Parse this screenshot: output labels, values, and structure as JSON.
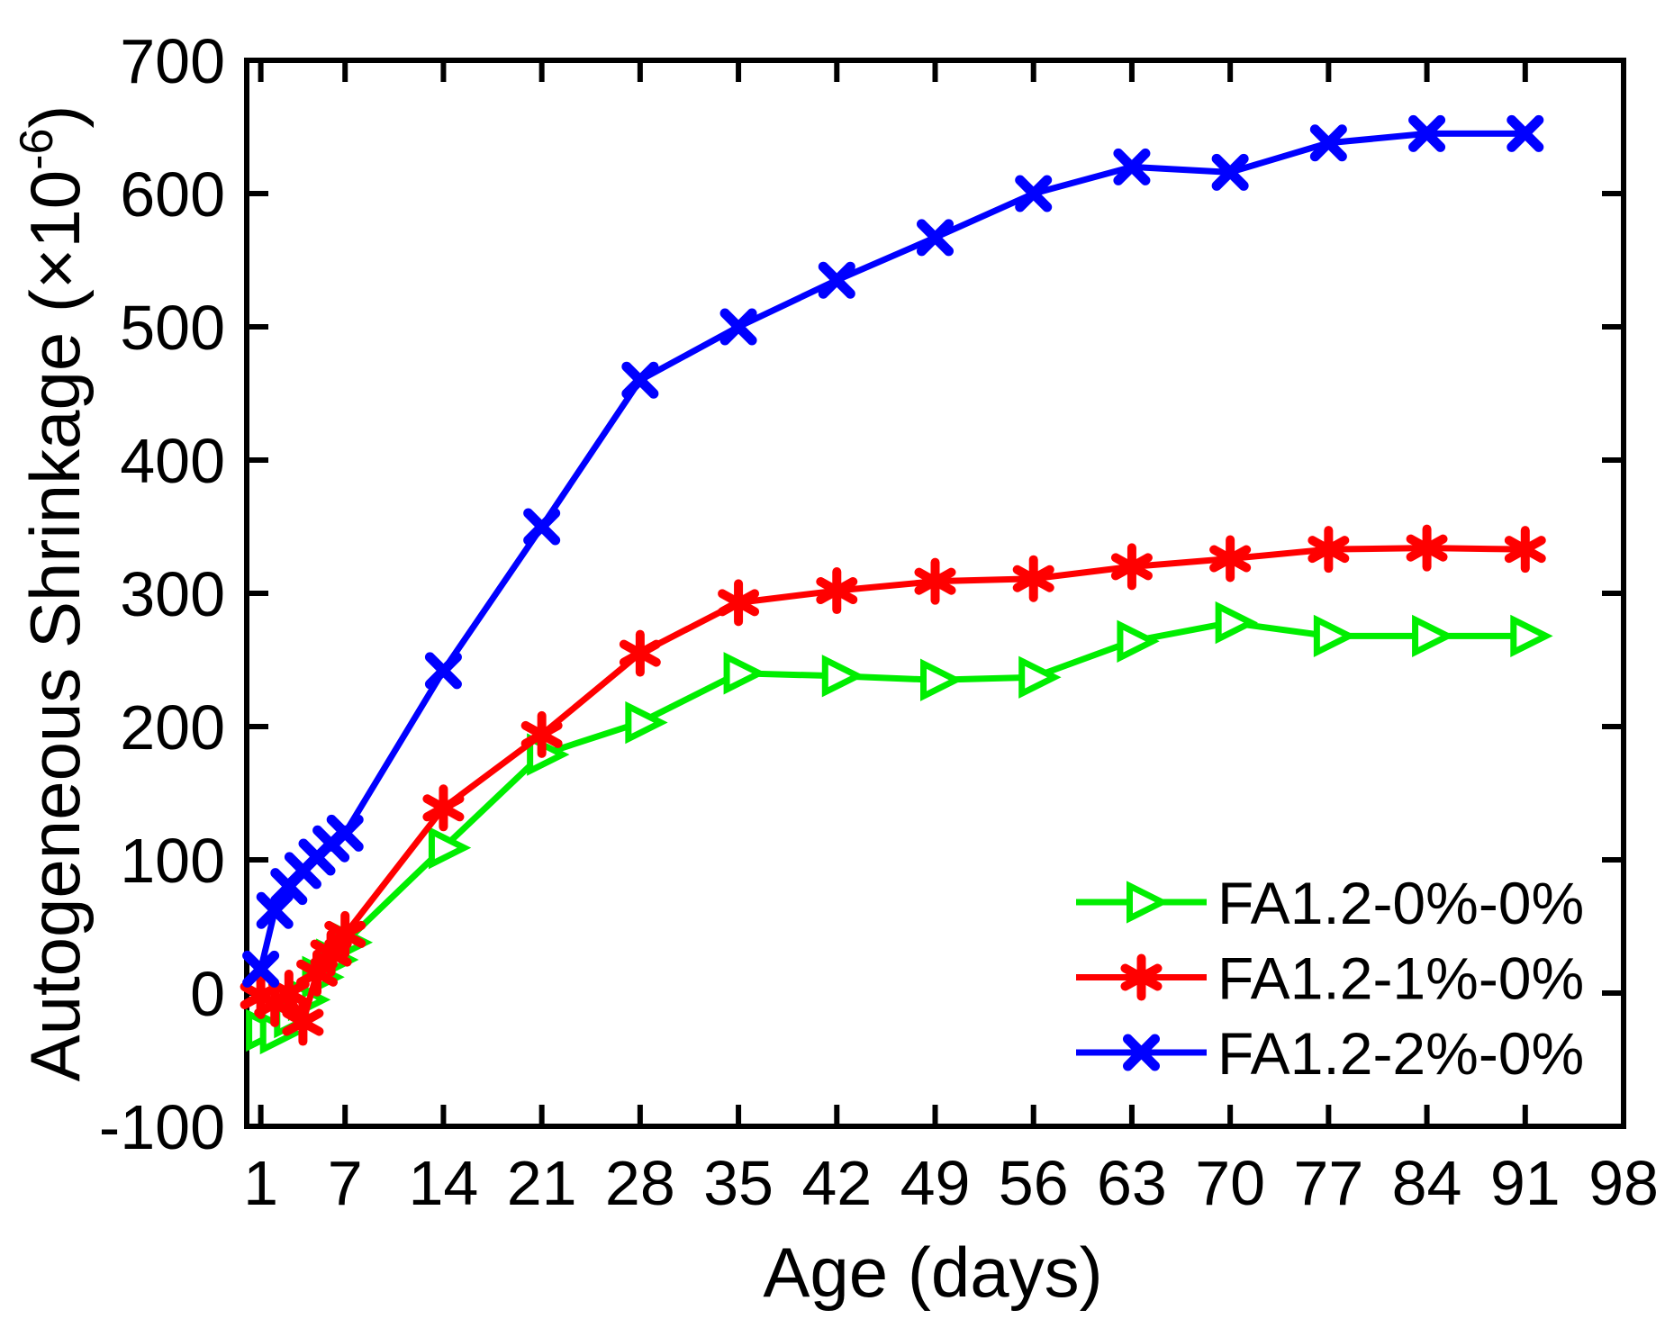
{
  "chart_data": {
    "type": "line",
    "title": "",
    "xlabel": "Age (days)",
    "ylabel": "Autogeneous Shrinkage (×10⁻⁶)",
    "ylabel_parts": {
      "main": "Autogeneous Shrinkage (×10",
      "superscript": "-6",
      "close": ")"
    },
    "axis_color": "#000000",
    "background": "#ffffff",
    "xlim": [
      0,
      98
    ],
    "ylim": [
      -100,
      700
    ],
    "xticks": [
      1,
      7,
      14,
      21,
      28,
      35,
      42,
      49,
      56,
      63,
      70,
      77,
      84,
      91,
      98
    ],
    "yticks": [
      -100,
      0,
      100,
      200,
      300,
      400,
      500,
      600,
      700
    ],
    "grid": false,
    "legend_position": "lower right",
    "x": [
      1,
      2,
      3,
      4,
      5,
      6,
      7,
      14,
      21,
      28,
      35,
      42,
      49,
      56,
      63,
      70,
      77,
      84,
      91
    ],
    "series": [
      {
        "name": "FA1.2-0%-0%",
        "color": "#00ee00",
        "marker": "triangle-right",
        "values": [
          -28,
          -30,
          -18,
          -5,
          12,
          25,
          38,
          109,
          179,
          203,
          240,
          238,
          235,
          237,
          264,
          278,
          268,
          268,
          268
        ]
      },
      {
        "name": "FA1.2-1%-0%",
        "color": "#ff0000",
        "marker": "asterisk",
        "values": [
          -2,
          -8,
          0,
          -22,
          15,
          30,
          44,
          139,
          194,
          255,
          293,
          302,
          309,
          311,
          320,
          326,
          333,
          334,
          333
        ]
      },
      {
        "name": "FA1.2-2%-0%",
        "color": "#0000ff",
        "marker": "x",
        "values": [
          18,
          62,
          80,
          92,
          102,
          112,
          120,
          242,
          350,
          460,
          500,
          535,
          567,
          600,
          620,
          616,
          638,
          645,
          645
        ]
      }
    ]
  }
}
